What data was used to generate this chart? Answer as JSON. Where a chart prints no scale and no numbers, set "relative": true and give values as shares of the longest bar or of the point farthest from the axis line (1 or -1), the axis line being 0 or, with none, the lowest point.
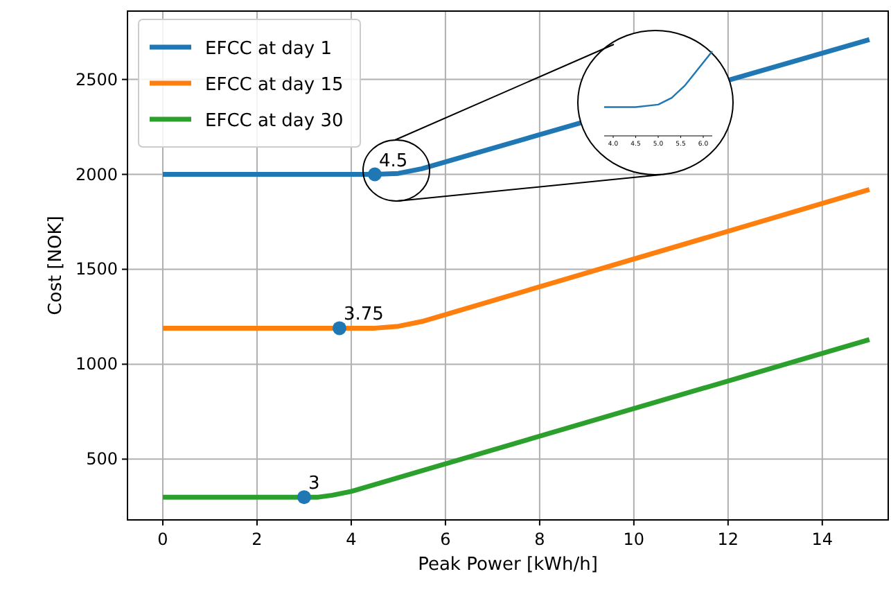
{
  "chart_data": [
    {
      "type": "line",
      "xlabel": "Peak Power [kWh/h]",
      "ylabel": "Cost [NOK]",
      "xlim": [
        -0.75,
        15.4
      ],
      "xticks": [
        0,
        2,
        4,
        6,
        8,
        10,
        12,
        14
      ],
      "ylim": [
        180,
        2860
      ],
      "yticks": [
        500,
        1000,
        1500,
        2000,
        2500
      ],
      "grid": true,
      "legend": "top left",
      "series": [
        {
          "name": "EFCC at day 1",
          "color": "#1f77b4",
          "x": [
            0,
            4.5,
            5.0,
            5.5,
            15
          ],
          "values": [
            2000,
            2000,
            2005,
            2030,
            2710
          ]
        },
        {
          "name": "EFCC at day 15",
          "color": "#ff7f0e",
          "x": [
            0,
            4.5,
            5.0,
            5.5,
            15
          ],
          "values": [
            1190,
            1190,
            1200,
            1225,
            1920
          ]
        },
        {
          "name": "EFCC at day 30",
          "color": "#2ca02c",
          "x": [
            0,
            3.3,
            3.6,
            4.0,
            15
          ],
          "values": [
            300,
            300,
            310,
            330,
            1130
          ]
        },
        {
          "type": "scatter",
          "color": "#1f77b4",
          "marker": "circle",
          "x": [
            4.5,
            3.75,
            3
          ],
          "values": [
            2000,
            1190,
            300
          ]
        }
      ],
      "annotations": [
        {
          "text": "4.5",
          "x": 4.5,
          "y": 2000
        },
        {
          "text": "3.75",
          "x": 3.75,
          "y": 1190
        },
        {
          "text": "3",
          "x": 3,
          "y": 300
        }
      ]
    },
    {
      "type": "line",
      "xlim": [
        3.8,
        6.2
      ],
      "xticks": [
        {
          "value": 4,
          "label": "4.0"
        },
        {
          "value": 4.5,
          "label": "4.5"
        },
        {
          "value": 5,
          "label": "5.0"
        },
        {
          "value": 5.5,
          "label": "5.5"
        },
        {
          "value": 6,
          "label": "6.0"
        }
      ],
      "relative": true,
      "tick_labels": "x",
      "series": [
        {
          "color": "#1f77b4",
          "x": [
            3.8,
            4.5,
            5.0,
            5.3,
            5.6,
            6.2
          ],
          "values": [
            0.34,
            0.34,
            0.37,
            0.45,
            0.6,
            1
          ]
        }
      ]
    }
  ]
}
